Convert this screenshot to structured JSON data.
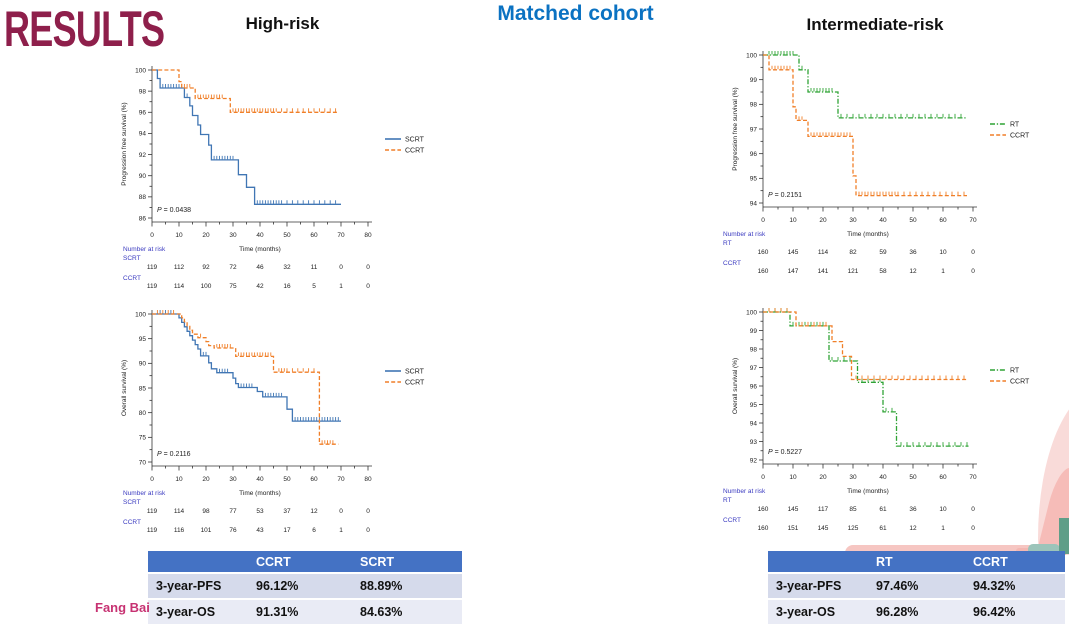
{
  "slide": {
    "title": "RESULTS",
    "cohort_label": "Matched cohort",
    "left_group_label": "High-risk",
    "right_group_label": "Intermediate-risk",
    "footer": "Fang Bai"
  },
  "colors": {
    "title": "#8e1f4b",
    "cohort": "#0b72c2",
    "risk_label": "#3a3ac0",
    "table_header": "#4472c4",
    "scrt": "#4076b4",
    "ccrt": "#f07f28",
    "rt": "#2fa335"
  },
  "chart_data": [
    {
      "type": "line",
      "title": "High-risk progression free survival",
      "ylabel": "Progression free survival (%)",
      "xlabel": "Time (months)",
      "p_value": "0.0438",
      "ylim": [
        86,
        100
      ],
      "ytick_step": 2,
      "xlim": [
        0,
        80
      ],
      "xtick_step": 10,
      "legend_position": "right",
      "series": [
        {
          "name": "SCRT",
          "color_key": "scrt",
          "style": "solid",
          "end_x": 70,
          "steps": [
            [
              0,
              100
            ],
            [
              2,
              99.2
            ],
            [
              3,
              98.3
            ],
            [
              12,
              97.4
            ],
            [
              14,
              96.6
            ],
            [
              15,
              95.7
            ],
            [
              17,
              94.8
            ],
            [
              18,
              93.9
            ],
            [
              21,
              92.9
            ],
            [
              22,
              91.5
            ],
            [
              32,
              90.1
            ],
            [
              35,
              88.9
            ],
            [
              38,
              87.3
            ]
          ],
          "censors": [
            4,
            5,
            6,
            7,
            8,
            9,
            10,
            13,
            23,
            24,
            25,
            26,
            27,
            28,
            29,
            30,
            39,
            40,
            41,
            42,
            43,
            44,
            45,
            46,
            47,
            48,
            50,
            52,
            54,
            56,
            58,
            60,
            62,
            64,
            66,
            68
          ]
        },
        {
          "name": "CCRT",
          "color_key": "ccrt",
          "style": "dashed",
          "end_x": 69,
          "steps": [
            [
              0,
              100
            ],
            [
              10,
              98.9
            ],
            [
              11,
              98.3
            ],
            [
              16,
              97.3
            ],
            [
              29,
              96.0
            ]
          ],
          "censors": [
            12,
            13,
            14,
            17,
            18,
            19,
            20,
            21,
            22,
            23,
            24,
            25,
            26,
            30,
            31,
            32,
            33,
            34,
            35,
            36,
            37,
            38,
            39,
            40,
            41,
            42,
            43,
            44,
            45,
            46,
            48,
            50,
            52,
            54,
            56,
            58,
            60,
            62,
            64,
            66,
            68
          ]
        }
      ],
      "number_at_risk": {
        "label": "Number at risk",
        "ticks": [
          0,
          10,
          20,
          30,
          40,
          50,
          60,
          70,
          80
        ],
        "groups": [
          {
            "name": "SCRT",
            "counts": [
              119,
              112,
              92,
              72,
              46,
              32,
              11,
              0,
              0
            ]
          },
          {
            "name": "CCRT",
            "counts": [
              119,
              114,
              100,
              75,
              42,
              16,
              5,
              1,
              0
            ]
          }
        ]
      }
    },
    {
      "type": "line",
      "title": "High-risk overall survival",
      "ylabel": "Overall survival (%)",
      "xlabel": "Time (months)",
      "p_value": "0.2116",
      "ylim": [
        70,
        100
      ],
      "ytick_step": 5,
      "xlim": [
        0,
        80
      ],
      "xtick_step": 10,
      "legend_position": "right",
      "series": [
        {
          "name": "SCRT",
          "color_key": "scrt",
          "style": "solid",
          "end_x": 70,
          "steps": [
            [
              0,
              100
            ],
            [
              10,
              99.2
            ],
            [
              11,
              98.3
            ],
            [
              12,
              97.4
            ],
            [
              13,
              96.5
            ],
            [
              14,
              95.6
            ],
            [
              15,
              94.7
            ],
            [
              16,
              93.8
            ],
            [
              17,
              92.9
            ],
            [
              18,
              91.5
            ],
            [
              21,
              90.1
            ],
            [
              22,
              88.9
            ],
            [
              24,
              88.1
            ],
            [
              30,
              87.0
            ],
            [
              31,
              85.9
            ],
            [
              32,
              85.1
            ],
            [
              39,
              84.3
            ],
            [
              41,
              83.2
            ],
            [
              50,
              80.7
            ],
            [
              52,
              78.3
            ]
          ],
          "censors": [
            3,
            5,
            7,
            19,
            20,
            25,
            26,
            27,
            28,
            33,
            34,
            35,
            36,
            37,
            42,
            43,
            44,
            45,
            46,
            47,
            48,
            53,
            54,
            55,
            56,
            57,
            58,
            59,
            60,
            61,
            62,
            63,
            64,
            65,
            66,
            67,
            68,
            69
          ]
        },
        {
          "name": "CCRT",
          "color_key": "ccrt",
          "style": "dashed",
          "end_x": 69,
          "steps": [
            [
              0,
              100
            ],
            [
              11,
              99.2
            ],
            [
              12,
              98.4
            ],
            [
              13,
              97.6
            ],
            [
              14,
              96.7
            ],
            [
              15,
              95.9
            ],
            [
              17,
              95.2
            ],
            [
              20,
              94.4
            ],
            [
              21,
              93.6
            ],
            [
              23,
              93.1
            ],
            [
              31,
              91.4
            ],
            [
              45,
              88.2
            ],
            [
              62,
              73.6
            ]
          ],
          "censors": [
            2,
            4,
            6,
            8,
            18,
            24,
            25,
            26,
            27,
            28,
            29,
            32,
            33,
            34,
            35,
            36,
            37,
            38,
            39,
            40,
            41,
            42,
            43,
            44,
            47,
            48,
            49,
            50,
            52,
            54,
            56,
            58,
            60,
            63,
            64,
            65,
            66,
            67
          ]
        }
      ],
      "number_at_risk": {
        "label": "Number at risk",
        "ticks": [
          0,
          10,
          20,
          30,
          40,
          50,
          60,
          70,
          80
        ],
        "groups": [
          {
            "name": "SCRT",
            "counts": [
              119,
              114,
              98,
              77,
              53,
              37,
              12,
              0,
              0
            ]
          },
          {
            "name": "CCRT",
            "counts": [
              119,
              116,
              101,
              76,
              43,
              17,
              6,
              1,
              0
            ]
          }
        ]
      }
    },
    {
      "type": "line",
      "title": "Intermediate-risk progression free survival",
      "ylabel": "Progression free survival (%)",
      "xlabel": "Time (months)",
      "p_value": "0.2151",
      "ylim": [
        94,
        100
      ],
      "ytick_step": 1,
      "xlim": [
        0,
        70
      ],
      "xtick_step": 10,
      "legend_position": "right",
      "series": [
        {
          "name": "RT",
          "color_key": "rt",
          "style": "dashdot",
          "end_x": 68,
          "steps": [
            [
              0,
              100
            ],
            [
              12,
              99.4
            ],
            [
              15,
              98.5
            ],
            [
              25,
              97.45
            ]
          ],
          "censors": [
            2,
            3,
            4,
            5,
            6,
            7,
            8,
            9,
            10,
            13,
            16,
            17,
            18,
            19,
            20,
            21,
            22,
            23,
            26,
            28,
            30,
            32,
            34,
            36,
            38,
            40,
            42,
            44,
            46,
            48,
            50,
            52,
            54,
            56,
            58,
            60,
            62,
            64,
            66
          ]
        },
        {
          "name": "CCRT",
          "color_key": "ccrt",
          "style": "dashed",
          "end_x": 68,
          "steps": [
            [
              0,
              100
            ],
            [
              2,
              99.4
            ],
            [
              10,
              97.9
            ],
            [
              11,
              97.35
            ],
            [
              15,
              96.7
            ],
            [
              30,
              95.1
            ],
            [
              31,
              94.3
            ]
          ],
          "censors": [
            3,
            4,
            5,
            6,
            7,
            8,
            9,
            12,
            13,
            16,
            17,
            18,
            19,
            20,
            21,
            22,
            23,
            24,
            25,
            26,
            27,
            28,
            29,
            32,
            33,
            34,
            35,
            36,
            37,
            38,
            39,
            40,
            41,
            42,
            43,
            44,
            45,
            47,
            49,
            51,
            53,
            55,
            57,
            59,
            61,
            63,
            65,
            67
          ]
        }
      ],
      "number_at_risk": {
        "label": "Number at risk",
        "ticks": [
          0,
          10,
          20,
          30,
          40,
          50,
          60,
          70
        ],
        "groups": [
          {
            "name": "RT",
            "counts": [
              160,
              145,
              114,
              82,
              59,
              36,
              10,
              0
            ]
          },
          {
            "name": "CCRT",
            "counts": [
              160,
              147,
              141,
              121,
              58,
              12,
              1,
              0
            ]
          }
        ]
      }
    },
    {
      "type": "line",
      "title": "Intermediate-risk overall survival",
      "ylabel": "Overall survival (%)",
      "xlabel": "Time (months)",
      "p_value": "0.5227",
      "ylim": [
        92,
        100
      ],
      "ytick_step": 1,
      "xlim": [
        0,
        70
      ],
      "xtick_step": 10,
      "legend_position": "right",
      "series": [
        {
          "name": "RT",
          "color_key": "rt",
          "style": "dashdot",
          "end_x": 68.5,
          "steps": [
            [
              0,
              100
            ],
            [
              9,
              99.25
            ],
            [
              22,
              97.35
            ],
            [
              31.5,
              96.2
            ],
            [
              40,
              94.6
            ],
            [
              44.5,
              92.75
            ]
          ],
          "censors": [
            2,
            4,
            6,
            8,
            10,
            12,
            14,
            16,
            18,
            20,
            23,
            25,
            27,
            29,
            33,
            35,
            37,
            39,
            41,
            43,
            46,
            48,
            50,
            52,
            54,
            56,
            58,
            60,
            62,
            64,
            66,
            68
          ]
        },
        {
          "name": "CCRT",
          "color_key": "ccrt",
          "style": "dashed",
          "end_x": 68,
          "steps": [
            [
              0,
              100
            ],
            [
              11,
              99.25
            ],
            [
              23,
              98.4
            ],
            [
              26.5,
              97.6
            ],
            [
              29.5,
              96.35
            ]
          ],
          "censors": [
            2,
            4,
            6,
            8,
            13,
            15,
            17,
            19,
            21,
            31,
            33,
            35,
            37,
            39,
            41,
            43,
            45,
            47,
            49,
            51,
            53,
            55,
            57,
            59,
            61,
            63,
            65,
            67
          ]
        }
      ],
      "number_at_risk": {
        "label": "Number at risk",
        "ticks": [
          0,
          10,
          20,
          30,
          40,
          50,
          60,
          70
        ],
        "groups": [
          {
            "name": "RT",
            "counts": [
              160,
              145,
              117,
              85,
              61,
              36,
              10,
              0
            ]
          },
          {
            "name": "CCRT",
            "counts": [
              160,
              151,
              145,
              125,
              61,
              12,
              1,
              0
            ]
          }
        ]
      }
    }
  ],
  "tables": {
    "left": {
      "headers": [
        "",
        "CCRT",
        "SCRT"
      ],
      "rows": [
        {
          "label": "3-year-PFS",
          "values": [
            "96.12%",
            "88.89%"
          ]
        },
        {
          "label": "3-year-OS",
          "values": [
            "91.31%",
            "84.63%"
          ]
        }
      ]
    },
    "right": {
      "headers": [
        "",
        "RT",
        "CCRT"
      ],
      "rows": [
        {
          "label": "3-year-PFS",
          "values": [
            "97.46%",
            "94.32%"
          ]
        },
        {
          "label": "3-year-OS",
          "values": [
            "96.28%",
            "96.42%"
          ]
        }
      ]
    }
  }
}
